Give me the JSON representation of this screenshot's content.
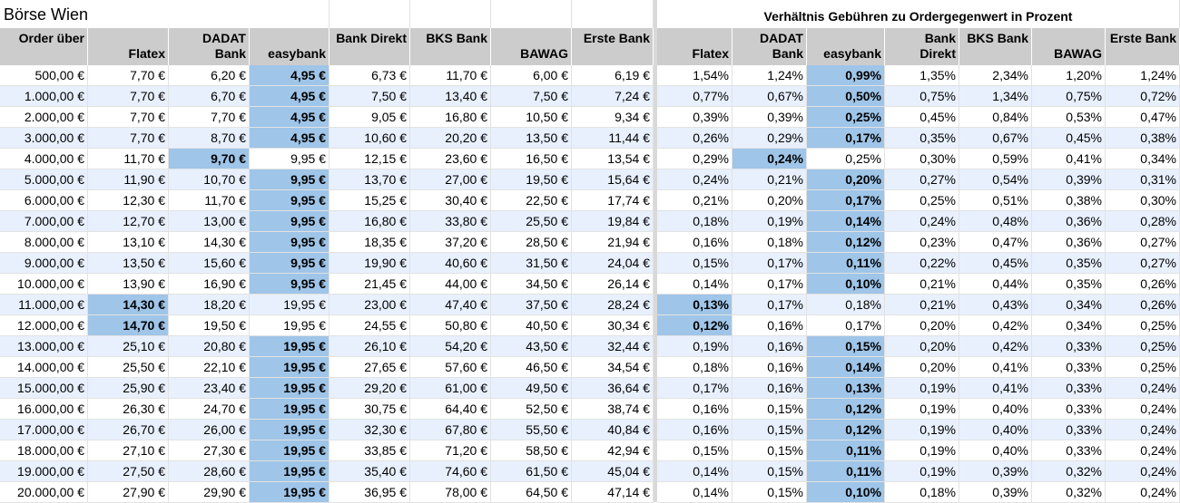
{
  "sheet_title": "Börse Wien",
  "right_title": "Verhältnis Gebühren zu Ordergegenwert in Prozent",
  "colors": {
    "header_bg": "#cccccc",
    "band_bg": "#e8f0fe",
    "highlight_bg": "#9fc5e8",
    "divider": "#d9d9d9"
  },
  "headers_left": [
    "Order über",
    "Flatex",
    "DADAT Bank",
    "easybank",
    "Bank Direkt",
    "BKS Bank",
    "BAWAG",
    "Erste Bank"
  ],
  "headers_right": [
    "Flatex",
    "DADAT Bank",
    "easybank",
    "Bank Direkt",
    "BKS Bank",
    "BAWAG",
    "Erste Bank"
  ],
  "rows": [
    {
      "order": "500,00 €",
      "fees": [
        "7,70 €",
        "6,20 €",
        "4,95 €",
        "6,73 €",
        "11,70 €",
        "6,00 €",
        "6,19 €"
      ],
      "pct": [
        "1,54%",
        "1,24%",
        "0,99%",
        "1,35%",
        "2,34%",
        "1,20%",
        "1,24%"
      ],
      "hl_fee": 2,
      "hl_pct": 2
    },
    {
      "order": "1.000,00 €",
      "fees": [
        "7,70 €",
        "6,70 €",
        "4,95 €",
        "7,50 €",
        "13,40 €",
        "7,50 €",
        "7,24 €"
      ],
      "pct": [
        "0,77%",
        "0,67%",
        "0,50%",
        "0,75%",
        "1,34%",
        "0,75%",
        "0,72%"
      ],
      "hl_fee": 2,
      "hl_pct": 2
    },
    {
      "order": "2.000,00 €",
      "fees": [
        "7,70 €",
        "7,70 €",
        "4,95 €",
        "9,05 €",
        "16,80 €",
        "10,50 €",
        "9,34 €"
      ],
      "pct": [
        "0,39%",
        "0,39%",
        "0,25%",
        "0,45%",
        "0,84%",
        "0,53%",
        "0,47%"
      ],
      "hl_fee": 2,
      "hl_pct": 2
    },
    {
      "order": "3.000,00 €",
      "fees": [
        "7,70 €",
        "8,70 €",
        "4,95 €",
        "10,60 €",
        "20,20 €",
        "13,50 €",
        "11,44 €"
      ],
      "pct": [
        "0,26%",
        "0,29%",
        "0,17%",
        "0,35%",
        "0,67%",
        "0,45%",
        "0,38%"
      ],
      "hl_fee": 2,
      "hl_pct": 2
    },
    {
      "order": "4.000,00 €",
      "fees": [
        "11,70 €",
        "9,70 €",
        "9,95 €",
        "12,15 €",
        "23,60 €",
        "16,50 €",
        "13,54 €"
      ],
      "pct": [
        "0,29%",
        "0,24%",
        "0,25%",
        "0,30%",
        "0,59%",
        "0,41%",
        "0,34%"
      ],
      "hl_fee": 1,
      "hl_pct": 1
    },
    {
      "order": "5.000,00 €",
      "fees": [
        "11,90 €",
        "10,70 €",
        "9,95 €",
        "13,70 €",
        "27,00 €",
        "19,50 €",
        "15,64 €"
      ],
      "pct": [
        "0,24%",
        "0,21%",
        "0,20%",
        "0,27%",
        "0,54%",
        "0,39%",
        "0,31%"
      ],
      "hl_fee": 2,
      "hl_pct": 2
    },
    {
      "order": "6.000,00 €",
      "fees": [
        "12,30 €",
        "11,70 €",
        "9,95 €",
        "15,25 €",
        "30,40 €",
        "22,50 €",
        "17,74 €"
      ],
      "pct": [
        "0,21%",
        "0,20%",
        "0,17%",
        "0,25%",
        "0,51%",
        "0,38%",
        "0,30%"
      ],
      "hl_fee": 2,
      "hl_pct": 2
    },
    {
      "order": "7.000,00 €",
      "fees": [
        "12,70 €",
        "13,00 €",
        "9,95 €",
        "16,80 €",
        "33,80 €",
        "25,50 €",
        "19,84 €"
      ],
      "pct": [
        "0,18%",
        "0,19%",
        "0,14%",
        "0,24%",
        "0,48%",
        "0,36%",
        "0,28%"
      ],
      "hl_fee": 2,
      "hl_pct": 2
    },
    {
      "order": "8.000,00 €",
      "fees": [
        "13,10 €",
        "14,30 €",
        "9,95 €",
        "18,35 €",
        "37,20 €",
        "28,50 €",
        "21,94 €"
      ],
      "pct": [
        "0,16%",
        "0,18%",
        "0,12%",
        "0,23%",
        "0,47%",
        "0,36%",
        "0,27%"
      ],
      "hl_fee": 2,
      "hl_pct": 2
    },
    {
      "order": "9.000,00 €",
      "fees": [
        "13,50 €",
        "15,60 €",
        "9,95 €",
        "19,90 €",
        "40,60 €",
        "31,50 €",
        "24,04 €"
      ],
      "pct": [
        "0,15%",
        "0,17%",
        "0,11%",
        "0,22%",
        "0,45%",
        "0,35%",
        "0,27%"
      ],
      "hl_fee": 2,
      "hl_pct": 2
    },
    {
      "order": "10.000,00 €",
      "fees": [
        "13,90 €",
        "16,90 €",
        "9,95 €",
        "21,45 €",
        "44,00 €",
        "34,50 €",
        "26,14 €"
      ],
      "pct": [
        "0,14%",
        "0,17%",
        "0,10%",
        "0,21%",
        "0,44%",
        "0,35%",
        "0,26%"
      ],
      "hl_fee": 2,
      "hl_pct": 2
    },
    {
      "order": "11.000,00 €",
      "fees": [
        "14,30 €",
        "18,20 €",
        "19,95 €",
        "23,00 €",
        "47,40 €",
        "37,50 €",
        "28,24 €"
      ],
      "pct": [
        "0,13%",
        "0,17%",
        "0,18%",
        "0,21%",
        "0,43%",
        "0,34%",
        "0,26%"
      ],
      "hl_fee": 0,
      "hl_pct": 0
    },
    {
      "order": "12.000,00 €",
      "fees": [
        "14,70 €",
        "19,50 €",
        "19,95 €",
        "24,55 €",
        "50,80 €",
        "40,50 €",
        "30,34 €"
      ],
      "pct": [
        "0,12%",
        "0,16%",
        "0,17%",
        "0,20%",
        "0,42%",
        "0,34%",
        "0,25%"
      ],
      "hl_fee": 0,
      "hl_pct": 0
    },
    {
      "order": "13.000,00 €",
      "fees": [
        "25,10 €",
        "20,80 €",
        "19,95 €",
        "26,10 €",
        "54,20 €",
        "43,50 €",
        "32,44 €"
      ],
      "pct": [
        "0,19%",
        "0,16%",
        "0,15%",
        "0,20%",
        "0,42%",
        "0,33%",
        "0,25%"
      ],
      "hl_fee": 2,
      "hl_pct": 2
    },
    {
      "order": "14.000,00 €",
      "fees": [
        "25,50 €",
        "22,10 €",
        "19,95 €",
        "27,65 €",
        "57,60 €",
        "46,50 €",
        "34,54 €"
      ],
      "pct": [
        "0,18%",
        "0,16%",
        "0,14%",
        "0,20%",
        "0,41%",
        "0,33%",
        "0,25%"
      ],
      "hl_fee": 2,
      "hl_pct": 2
    },
    {
      "order": "15.000,00 €",
      "fees": [
        "25,90 €",
        "23,40 €",
        "19,95 €",
        "29,20 €",
        "61,00 €",
        "49,50 €",
        "36,64 €"
      ],
      "pct": [
        "0,17%",
        "0,16%",
        "0,13%",
        "0,19%",
        "0,41%",
        "0,33%",
        "0,24%"
      ],
      "hl_fee": 2,
      "hl_pct": 2
    },
    {
      "order": "16.000,00 €",
      "fees": [
        "26,30 €",
        "24,70 €",
        "19,95 €",
        "30,75 €",
        "64,40 €",
        "52,50 €",
        "38,74 €"
      ],
      "pct": [
        "0,16%",
        "0,15%",
        "0,12%",
        "0,19%",
        "0,40%",
        "0,33%",
        "0,24%"
      ],
      "hl_fee": 2,
      "hl_pct": 2
    },
    {
      "order": "17.000,00 €",
      "fees": [
        "26,70 €",
        "26,00 €",
        "19,95 €",
        "32,30 €",
        "67,80 €",
        "55,50 €",
        "40,84 €"
      ],
      "pct": [
        "0,16%",
        "0,15%",
        "0,12%",
        "0,19%",
        "0,40%",
        "0,33%",
        "0,24%"
      ],
      "hl_fee": 2,
      "hl_pct": 2
    },
    {
      "order": "18.000,00 €",
      "fees": [
        "27,10 €",
        "27,30 €",
        "19,95 €",
        "33,85 €",
        "71,20 €",
        "58,50 €",
        "42,94 €"
      ],
      "pct": [
        "0,15%",
        "0,15%",
        "0,11%",
        "0,19%",
        "0,40%",
        "0,33%",
        "0,24%"
      ],
      "hl_fee": 2,
      "hl_pct": 2
    },
    {
      "order": "19.000,00 €",
      "fees": [
        "27,50 €",
        "28,60 €",
        "19,95 €",
        "35,40 €",
        "74,60 €",
        "61,50 €",
        "45,04 €"
      ],
      "pct": [
        "0,14%",
        "0,15%",
        "0,11%",
        "0,19%",
        "0,39%",
        "0,32%",
        "0,24%"
      ],
      "hl_fee": 2,
      "hl_pct": 2
    },
    {
      "order": "20.000,00 €",
      "fees": [
        "27,90 €",
        "29,90 €",
        "19,95 €",
        "36,95 €",
        "78,00 €",
        "64,50 €",
        "47,14 €"
      ],
      "pct": [
        "0,14%",
        "0,15%",
        "0,10%",
        "0,18%",
        "0,39%",
        "0,32%",
        "0,24%"
      ],
      "hl_fee": 2,
      "hl_pct": 2
    }
  ]
}
